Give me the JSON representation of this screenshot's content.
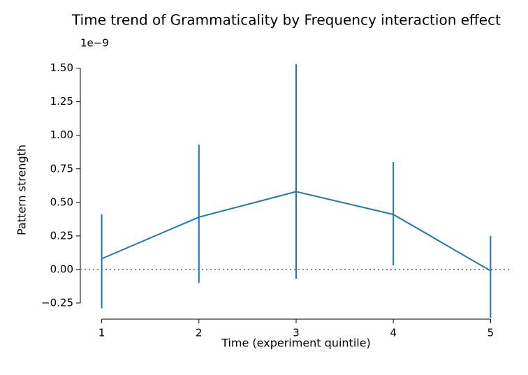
{
  "chart_data": {
    "type": "errorbar-line",
    "title": "Time trend of Grammaticality by Frequency interaction effect",
    "y_offset_label": "1e−9",
    "xlabel": "Time (experiment quintile)",
    "ylabel": "Pattern strength",
    "x": [
      1,
      2,
      3,
      4,
      5
    ],
    "series": [
      {
        "color": "#1f77b4",
        "values": [
          0.08,
          0.39,
          0.58,
          0.41,
          -0.01
        ],
        "lower": [
          -0.29,
          -0.1,
          -0.07,
          0.03,
          -0.36
        ],
        "upper": [
          0.41,
          0.93,
          1.53,
          0.8,
          0.25
        ]
      }
    ],
    "reference_line": {
      "value": 0,
      "color": "#888888",
      "style": "dotted"
    },
    "xlim": [
      0.78,
      5.22
    ],
    "xticks": [
      1,
      2,
      3,
      4,
      5
    ],
    "ylim": [
      -0.37,
      1.55
    ],
    "yticks": [
      {
        "value": -0.25,
        "label": "−0.25"
      },
      {
        "value": 0,
        "label": "0.00"
      },
      {
        "value": 0.25,
        "label": "0.25"
      },
      {
        "value": 0.5,
        "label": "0.50"
      },
      {
        "value": 0.75,
        "label": "0.75"
      },
      {
        "value": 1,
        "label": "1.00"
      },
      {
        "value": 1.25,
        "label": "1.25"
      },
      {
        "value": 1.5,
        "label": "1.50"
      }
    ],
    "grid": false
  }
}
